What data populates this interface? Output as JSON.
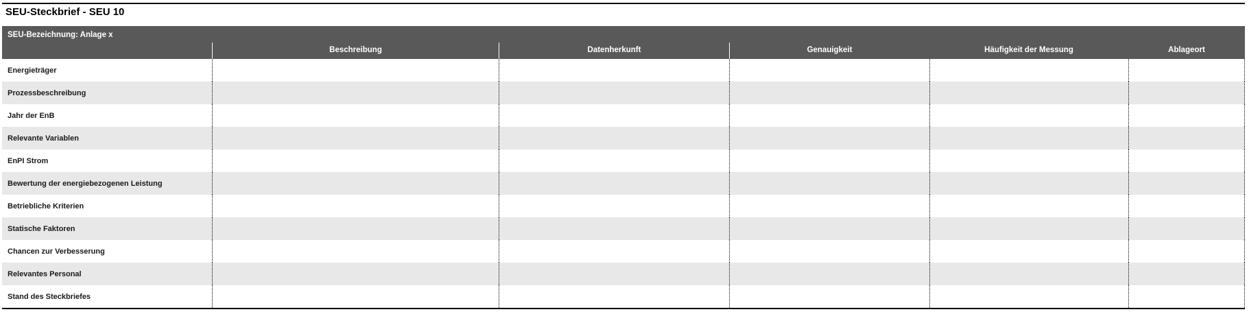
{
  "page": {
    "title": "SEU-Steckbrief - SEU 10"
  },
  "table": {
    "band_label": "SEU-Bezeichnung: Anlage x",
    "columns": [
      "Beschreibung",
      "Datenherkunft",
      "Genauigkeit",
      "Häufigkeit der Messung",
      "Ablageort"
    ],
    "rows": [
      {
        "label": "Energieträger",
        "values": [
          "",
          "",
          "",
          "",
          ""
        ]
      },
      {
        "label": "Prozessbeschreibung",
        "values": [
          "",
          "",
          "",
          "",
          ""
        ]
      },
      {
        "label": "Jahr der EnB",
        "values": [
          "",
          "",
          "",
          "",
          ""
        ]
      },
      {
        "label": "Relevante Variablen",
        "values": [
          "",
          "",
          "",
          "",
          ""
        ]
      },
      {
        "label": "EnPI Strom",
        "values": [
          "",
          "",
          "",
          "",
          ""
        ]
      },
      {
        "label": "Bewertung der energiebezogenen Leistung",
        "values": [
          "",
          "",
          "",
          "",
          ""
        ]
      },
      {
        "label": "Betriebliche Kriterien",
        "values": [
          "",
          "",
          "",
          "",
          ""
        ]
      },
      {
        "label": "Statische Faktoren",
        "values": [
          "",
          "",
          "",
          "",
          ""
        ]
      },
      {
        "label": "Chancen zur Verbesserung",
        "values": [
          "",
          "",
          "",
          "",
          ""
        ]
      },
      {
        "label": "Relevantes Personal",
        "values": [
          "",
          "",
          "",
          "",
          ""
        ]
      },
      {
        "label": "Stand des Steckbriefes",
        "values": [
          "",
          "",
          "",
          "",
          ""
        ]
      }
    ]
  },
  "colors": {
    "band_background": "#595959",
    "row_alt_background": "#e8e8e8",
    "header_text": "#ffffff",
    "label_text": "#1a1a1a",
    "border": "#000000"
  }
}
